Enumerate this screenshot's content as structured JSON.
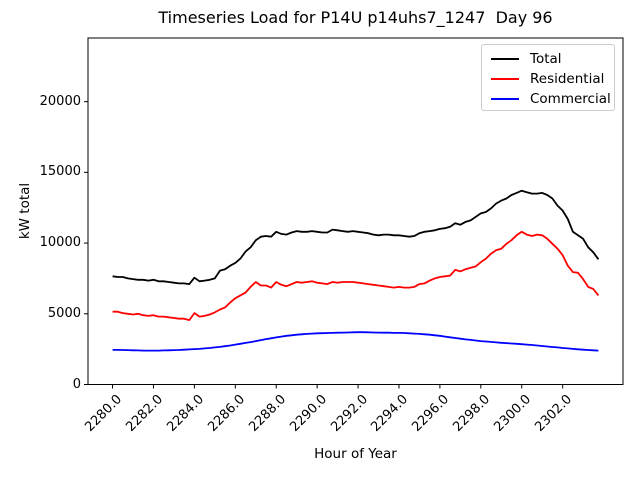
{
  "chart_data": {
    "type": "line",
    "title": "Timeseries Load for P14U p14uhs7_1247  Day 96",
    "xlabel": "Hour of Year",
    "ylabel": "kW total",
    "grid": false,
    "legend_position": "upper right",
    "xlim": [
      2278.8,
      2304.95
    ],
    "ylim": [
      0,
      24500
    ],
    "x_tick_values": [
      2280,
      2282,
      2284,
      2286,
      2288,
      2290,
      2292,
      2294,
      2296,
      2298,
      2300,
      2302
    ],
    "x_tick_labels": [
      "2280.0",
      "2282.0",
      "2284.0",
      "2286.0",
      "2288.0",
      "2290.0",
      "2292.0",
      "2294.0",
      "2296.0",
      "2298.0",
      "2300.0",
      "2302.0"
    ],
    "y_tick_values": [
      0,
      5000,
      10000,
      15000,
      20000
    ],
    "y_tick_labels": [
      "0",
      "5000",
      "10000",
      "15000",
      "20000"
    ],
    "x": [
      2280.0,
      2280.25,
      2280.5,
      2280.75,
      2281.0,
      2281.25,
      2281.5,
      2281.75,
      2282.0,
      2282.25,
      2282.5,
      2282.75,
      2283.0,
      2283.25,
      2283.5,
      2283.75,
      2284.0,
      2284.25,
      2284.5,
      2284.75,
      2285.0,
      2285.25,
      2285.5,
      2285.75,
      2286.0,
      2286.25,
      2286.5,
      2286.75,
      2287.0,
      2287.25,
      2287.5,
      2287.75,
      2288.0,
      2288.25,
      2288.5,
      2288.75,
      2289.0,
      2289.25,
      2289.5,
      2289.75,
      2290.0,
      2290.25,
      2290.5,
      2290.75,
      2291.0,
      2291.25,
      2291.5,
      2291.75,
      2292.0,
      2292.25,
      2292.5,
      2292.75,
      2293.0,
      2293.25,
      2293.5,
      2293.75,
      2294.0,
      2294.25,
      2294.5,
      2294.75,
      2295.0,
      2295.25,
      2295.5,
      2295.75,
      2296.0,
      2296.25,
      2296.5,
      2296.75,
      2297.0,
      2297.25,
      2297.5,
      2297.75,
      2298.0,
      2298.25,
      2298.5,
      2298.75,
      2299.0,
      2299.25,
      2299.5,
      2299.75,
      2300.0,
      2300.25,
      2300.5,
      2300.75,
      2301.0,
      2301.25,
      2301.5,
      2301.75,
      2302.0,
      2302.25,
      2302.5,
      2302.75,
      2303.0,
      2303.25,
      2303.5,
      2303.75
    ],
    "series": [
      {
        "name": "Total",
        "color": "#000000",
        "values": [
          7650,
          7600,
          7600,
          7500,
          7450,
          7400,
          7400,
          7350,
          7400,
          7300,
          7300,
          7250,
          7200,
          7150,
          7150,
          7100,
          7550,
          7300,
          7350,
          7400,
          7500,
          8050,
          8150,
          8400,
          8600,
          8900,
          9400,
          9700,
          10200,
          10450,
          10500,
          10450,
          10800,
          10650,
          10600,
          10750,
          10850,
          10800,
          10800,
          10850,
          10800,
          10750,
          10750,
          10950,
          10900,
          10850,
          10800,
          10850,
          10800,
          10750,
          10700,
          10600,
          10550,
          10600,
          10600,
          10550,
          10550,
          10500,
          10450,
          10500,
          10700,
          10800,
          10850,
          10900,
          11000,
          11050,
          11150,
          11400,
          11300,
          11500,
          11600,
          11850,
          12100,
          12200,
          12450,
          12800,
          13000,
          13150,
          13400,
          13550,
          13700,
          13600,
          13500,
          13500,
          13550,
          13400,
          13150,
          12650,
          12300,
          11700,
          10800,
          10550,
          10300,
          9700,
          9350,
          8850
        ]
      },
      {
        "name": "Residential",
        "color": "#ff0000",
        "values": [
          5150,
          5150,
          5050,
          5000,
          4950,
          5000,
          4900,
          4850,
          4900,
          4800,
          4800,
          4750,
          4700,
          4650,
          4650,
          4550,
          5050,
          4800,
          4850,
          4950,
          5100,
          5300,
          5450,
          5800,
          6100,
          6300,
          6500,
          6900,
          7250,
          7000,
          7000,
          6850,
          7250,
          7050,
          6950,
          7100,
          7250,
          7200,
          7250,
          7300,
          7200,
          7150,
          7100,
          7250,
          7200,
          7250,
          7250,
          7250,
          7200,
          7150,
          7100,
          7050,
          7000,
          6950,
          6900,
          6850,
          6900,
          6850,
          6850,
          6900,
          7100,
          7150,
          7350,
          7500,
          7600,
          7650,
          7700,
          8100,
          8000,
          8150,
          8250,
          8350,
          8650,
          8900,
          9250,
          9500,
          9600,
          9950,
          10200,
          10550,
          10800,
          10600,
          10500,
          10600,
          10550,
          10300,
          9950,
          9600,
          9150,
          8400,
          7950,
          7900,
          7450,
          6900,
          6750,
          6300
        ]
      },
      {
        "name": "Commercial",
        "color": "#0000ff",
        "values": [
          2450,
          2450,
          2440,
          2430,
          2420,
          2410,
          2400,
          2400,
          2400,
          2400,
          2410,
          2420,
          2430,
          2440,
          2460,
          2480,
          2500,
          2520,
          2550,
          2580,
          2620,
          2660,
          2710,
          2760,
          2820,
          2880,
          2940,
          3000,
          3070,
          3140,
          3210,
          3270,
          3330,
          3390,
          3440,
          3480,
          3520,
          3550,
          3580,
          3600,
          3620,
          3630,
          3640,
          3650,
          3660,
          3670,
          3680,
          3690,
          3700,
          3700,
          3690,
          3680,
          3670,
          3660,
          3660,
          3650,
          3650,
          3640,
          3620,
          3600,
          3580,
          3550,
          3520,
          3480,
          3440,
          3390,
          3340,
          3290,
          3240,
          3190,
          3150,
          3110,
          3070,
          3040,
          3010,
          2980,
          2950,
          2930,
          2900,
          2880,
          2850,
          2820,
          2790,
          2760,
          2720,
          2690,
          2650,
          2620,
          2580,
          2550,
          2520,
          2490,
          2460,
          2440,
          2420,
          2400
        ]
      }
    ]
  }
}
